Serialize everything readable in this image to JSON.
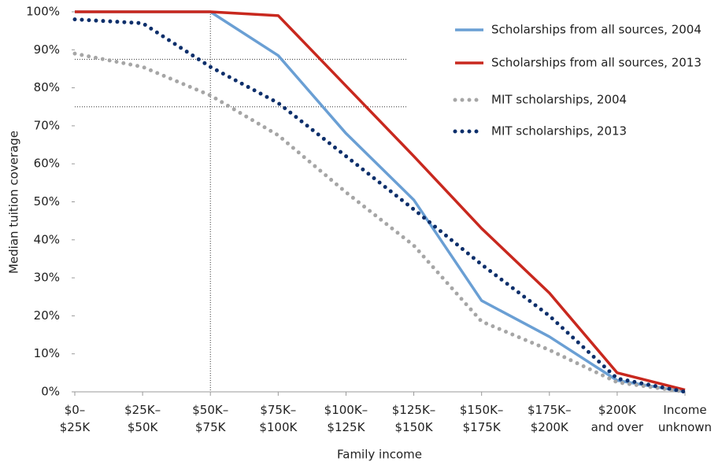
{
  "chart_data": {
    "type": "line",
    "y_label": "Median tuition coverage",
    "x_label": "Family income",
    "categories": [
      "$0–\n$25K",
      "$25K–\n$50K",
      "$50K–\n$75K",
      "$75K–\n$100K",
      "$100K–\n$125K",
      "$125K–\n$150K",
      "$150K–\n$175K",
      "$175K–\n$200K",
      "$200K\nand over",
      "Income\nunknown"
    ],
    "series": [
      {
        "name": "Scholarships from all sources, 2004",
        "color": "#6a9fd4",
        "style": "solid",
        "values": [
          100,
          100,
          100,
          88.5,
          68,
          50.5,
          24,
          14.5,
          3,
          0
        ]
      },
      {
        "name": "Scholarships from all sources, 2013",
        "color": "#c8281e",
        "style": "solid",
        "values": [
          100,
          100,
          100,
          99,
          80.5,
          62,
          43,
          26,
          5,
          0.5
        ]
      },
      {
        "name": "MIT scholarships, 2004",
        "color": "#a6a6a6",
        "style": "dotted",
        "values": [
          89,
          85.5,
          78,
          67.5,
          52.5,
          38.5,
          18.5,
          11,
          2.5,
          0
        ]
      },
      {
        "name": "MIT scholarships, 2013",
        "color": "#0d2f6b",
        "style": "dotted",
        "values": [
          98,
          97,
          85.5,
          76,
          62,
          48,
          33.5,
          20,
          3.5,
          0
        ]
      }
    ],
    "reference_y": [
      87.5,
      75
    ],
    "ylim": [
      0,
      100
    ],
    "yticks": [
      {
        "value": 0,
        "label": "0%"
      },
      {
        "value": 10,
        "label": "10%"
      },
      {
        "value": 20,
        "label": "20%"
      },
      {
        "value": 30,
        "label": "30%"
      },
      {
        "value": 40,
        "label": "40%"
      },
      {
        "value": 50,
        "label": "50%"
      },
      {
        "value": 60,
        "label": "60%"
      },
      {
        "value": 70,
        "label": "70%"
      },
      {
        "value": 80,
        "label": "80%"
      },
      {
        "value": 90,
        "label": "90%"
      },
      {
        "value": 100,
        "label": "100%"
      }
    ],
    "legend": "top-right",
    "grid": false
  }
}
